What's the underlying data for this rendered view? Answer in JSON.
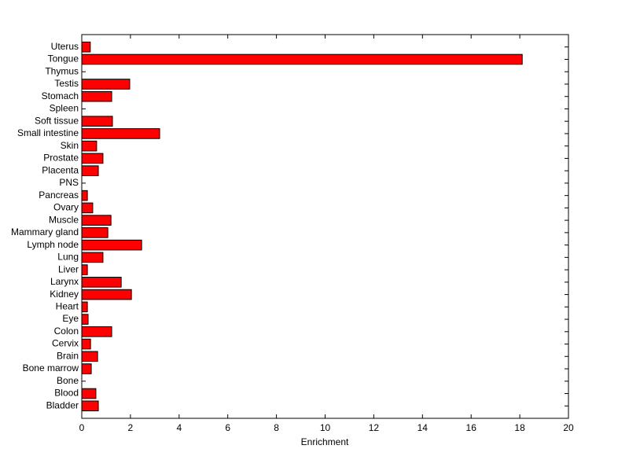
{
  "chart_data": {
    "type": "hbar",
    "xlabel": "Enrichment",
    "categories": [
      "Bladder",
      "Blood",
      "Bone",
      "Bone marrow",
      "Brain",
      "Cervix",
      "Colon",
      "Eye",
      "Heart",
      "Kidney",
      "Larynx",
      "Liver",
      "Lung",
      "Lymph node",
      "Mammary gland",
      "Muscle",
      "Ovary",
      "Pancreas",
      "PNS",
      "Placenta",
      "Prostate",
      "Skin",
      "Small intestine",
      "Soft tissue",
      "Spleen",
      "Stomach",
      "Testis",
      "Thymus",
      "Tongue",
      "Uterus"
    ],
    "values": [
      0.68,
      0.58,
      0,
      0.39,
      0.65,
      0.36,
      1.23,
      0.26,
      0.23,
      2.04,
      1.62,
      0.23,
      0.87,
      2.46,
      1.07,
      1.2,
      0.45,
      0.23,
      0,
      0.68,
      0.87,
      0.61,
      3.2,
      1.26,
      0,
      1.23,
      1.97,
      0,
      18.1,
      0.35
    ],
    "color": "#ff0000",
    "xlim": [
      0,
      20
    ],
    "xticks": [
      0,
      2,
      4,
      6,
      8,
      10,
      12,
      14,
      16,
      18,
      20
    ]
  }
}
